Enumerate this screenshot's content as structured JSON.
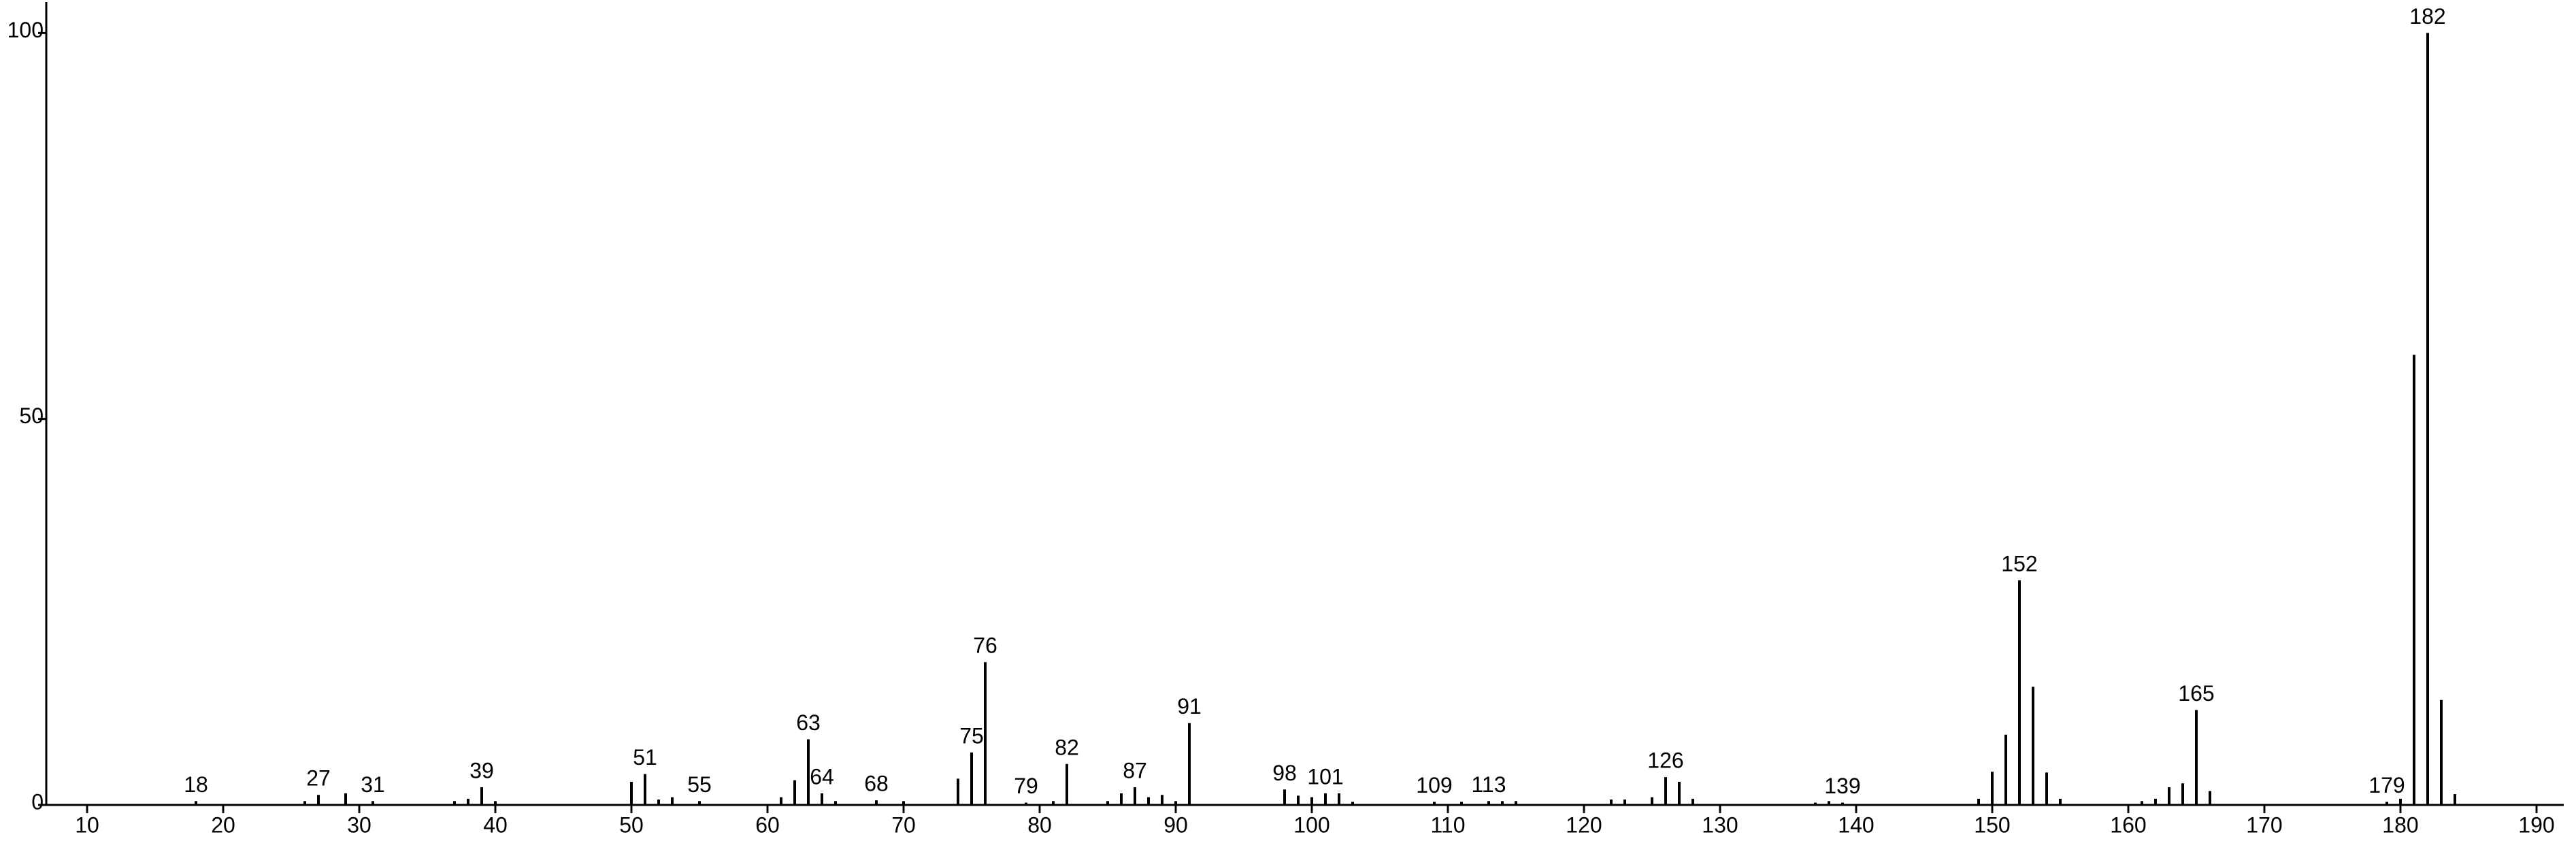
{
  "chart_data": {
    "type": "bar",
    "color": "#000000",
    "x": [
      18,
      26,
      27,
      29,
      31,
      37,
      38,
      39,
      40,
      50,
      51,
      52,
      53,
      55,
      61,
      62,
      63,
      64,
      65,
      68,
      70,
      74,
      75,
      76,
      79,
      81,
      82,
      85,
      86,
      87,
      88,
      89,
      90,
      91,
      98,
      99,
      100,
      101,
      102,
      103,
      109,
      111,
      113,
      114,
      115,
      122,
      123,
      125,
      126,
      127,
      128,
      137,
      138,
      139,
      149,
      150,
      151,
      152,
      153,
      154,
      155,
      161,
      162,
      163,
      164,
      165,
      166,
      179,
      180,
      181,
      182,
      183,
      184
    ],
    "values": [
      0.5,
      0.5,
      1.3,
      1.5,
      0.5,
      0.5,
      0.8,
      2.3,
      0.5,
      3.0,
      4.0,
      0.7,
      1.0,
      0.5,
      1.0,
      3.2,
      8.5,
      1.5,
      0.5,
      0.6,
      0.5,
      3.4,
      6.8,
      18.5,
      0.3,
      0.5,
      5.3,
      0.5,
      1.5,
      2.3,
      1.0,
      1.3,
      0.5,
      10.6,
      2.0,
      1.2,
      1.0,
      1.5,
      1.5,
      0.4,
      0.4,
      0.4,
      0.5,
      0.5,
      0.5,
      0.7,
      0.7,
      1.0,
      3.6,
      3.0,
      0.8,
      0.3,
      0.5,
      0.3,
      0.8,
      4.3,
      9.1,
      29.1,
      15.3,
      4.2,
      0.8,
      0.5,
      0.8,
      2.3,
      2.8,
      12.3,
      1.8,
      0.4,
      0.8,
      58.3,
      100,
      13.6,
      1.4
    ],
    "peak_labels": [
      18,
      27,
      31,
      39,
      51,
      55,
      63,
      64,
      68,
      75,
      76,
      79,
      82,
      87,
      91,
      98,
      101,
      109,
      113,
      126,
      139,
      152,
      165,
      179,
      182
    ],
    "xlim": [
      7,
      192
    ],
    "xticks": [
      10,
      20,
      30,
      40,
      50,
      60,
      70,
      80,
      90,
      100,
      110,
      120,
      130,
      140,
      150,
      160,
      170,
      180,
      190
    ],
    "ylim": [
      0,
      104
    ],
    "yticks": [
      0,
      50,
      100
    ]
  }
}
